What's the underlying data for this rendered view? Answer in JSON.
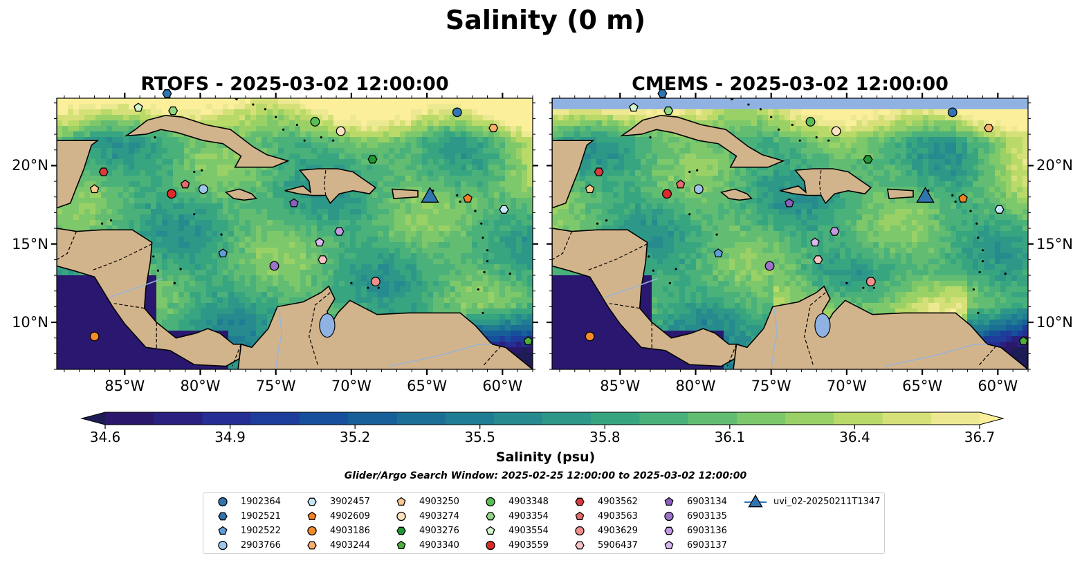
{
  "title": "Salinity (0 m)",
  "panels": [
    {
      "title": "RTOFS - 2025-03-02 12:00:00"
    },
    {
      "title": "CMEMS - 2025-03-02 12:00:00"
    }
  ],
  "map": {
    "lon_range": [
      -89.5,
      -58.0
    ],
    "lat_range": [
      7.0,
      24.3
    ],
    "lon_ticks": [
      {
        "value": -85,
        "label": "85°W"
      },
      {
        "value": -80,
        "label": "80°W"
      },
      {
        "value": -75,
        "label": "75°W"
      },
      {
        "value": -70,
        "label": "70°W"
      },
      {
        "value": -65,
        "label": "65°W"
      },
      {
        "value": -60,
        "label": "60°W"
      }
    ],
    "lat_ticks": [
      {
        "value": 20,
        "label": "20°N"
      },
      {
        "value": 15,
        "label": "15°N"
      },
      {
        "value": 10,
        "label": "10°N"
      }
    ],
    "colors": {
      "land": "#d2b48c",
      "lake": "#8fb2e3",
      "river": "#9ab4d4",
      "coast": "#000000",
      "pacific": "#2a1870"
    }
  },
  "colorbar": {
    "label": "Salinity (psu)",
    "min": 34.6,
    "max": 36.7,
    "ticks": [
      "34.6",
      "34.9",
      "35.2",
      "35.5",
      "35.8",
      "36.1",
      "36.4",
      "36.7"
    ],
    "colors": [
      "#2a186c",
      "#2a2080",
      "#252e93",
      "#1e3d9a",
      "#16509a",
      "#175f98",
      "#1b6e94",
      "#207c92",
      "#268a8e",
      "#2d9788",
      "#38a581",
      "#4ab17a",
      "#62bd72",
      "#7dc86b",
      "#9ad166",
      "#b9da68",
      "#d5e178",
      "#ede992"
    ],
    "over_color": "#fbef9b",
    "under_color": "#1e1c55"
  },
  "search_window": "Glider/Argo Search Window: 2025-02-25 12:00:00 to 2025-03-02 12:00:00",
  "platforms": [
    {
      "id": "1902364",
      "marker": "circle",
      "color": "#2f75b0",
      "lon": -63.0,
      "lat": 23.4
    },
    {
      "id": "1902521",
      "marker": "hexagon",
      "color": "#2f75b0",
      "lon": -82.2,
      "lat": 24.6
    },
    {
      "id": "1902522",
      "marker": "pentagon",
      "color": "#5f9fd9",
      "lon": -78.5,
      "lat": 14.4
    },
    {
      "id": "2903766",
      "marker": "circle",
      "color": "#9cc6ea",
      "lon": -79.8,
      "lat": 18.5
    },
    {
      "id": "3902457",
      "marker": "hexagon",
      "color": "#c5e6fa",
      "lon": -59.9,
      "lat": 17.2
    },
    {
      "id": "4902609",
      "marker": "pentagon",
      "color": "#f28121",
      "lon": -62.3,
      "lat": 17.9
    },
    {
      "id": "4903186",
      "marker": "circle",
      "color": "#f58c2b",
      "lon": -87.0,
      "lat": 9.1
    },
    {
      "id": "4903244",
      "marker": "hexagon",
      "color": "#f8b06c",
      "lon": -60.6,
      "lat": 22.4
    },
    {
      "id": "4903250",
      "marker": "pentagon",
      "color": "#f9c98e",
      "lon": -87.0,
      "lat": 18.5
    },
    {
      "id": "4903274",
      "marker": "circle",
      "color": "#fde2c0",
      "lon": -70.7,
      "lat": 22.2
    },
    {
      "id": "4903276",
      "marker": "hexagon",
      "color": "#1f9933",
      "lon": -68.6,
      "lat": 20.4
    },
    {
      "id": "4903340",
      "marker": "pentagon",
      "color": "#4daf3c",
      "lon": -58.3,
      "lat": 8.8
    },
    {
      "id": "4903348",
      "marker": "circle",
      "color": "#59bf52",
      "lon": -72.4,
      "lat": 22.8
    },
    {
      "id": "4903354",
      "marker": "hexagon",
      "color": "#8ed883",
      "lon": -81.8,
      "lat": 23.5
    },
    {
      "id": "4903554",
      "marker": "pentagon",
      "color": "#d4f5cc",
      "lon": -84.1,
      "lat": 23.7
    },
    {
      "id": "4903559",
      "marker": "circle",
      "color": "#dc2a28",
      "lon": -81.9,
      "lat": 18.2
    },
    {
      "id": "4903562",
      "marker": "hexagon",
      "color": "#d83a3d",
      "lon": -86.4,
      "lat": 19.6
    },
    {
      "id": "4903563",
      "marker": "pentagon",
      "color": "#e66b6a",
      "lon": -81.0,
      "lat": 18.8
    },
    {
      "id": "4903629",
      "marker": "circle",
      "color": "#f18f8c",
      "lon": -68.4,
      "lat": 12.6
    },
    {
      "id": "5906437",
      "marker": "hexagon",
      "color": "#fbc4c4",
      "lon": -71.9,
      "lat": 14.0
    },
    {
      "id": "6903134",
      "marker": "pentagon",
      "color": "#8d5fc1",
      "lon": -73.8,
      "lat": 17.6
    },
    {
      "id": "6903135",
      "marker": "circle",
      "color": "#9d73c9",
      "lon": -75.1,
      "lat": 13.6
    },
    {
      "id": "6903136",
      "marker": "hexagon",
      "color": "#c39ae0",
      "lon": -70.8,
      "lat": 15.8
    },
    {
      "id": "6903137",
      "marker": "pentagon",
      "color": "#d7b8f0",
      "lon": -72.1,
      "lat": 15.1
    },
    {
      "id": "uvi_02-20250211T1347",
      "marker": "triangle",
      "color": "#2f75b0",
      "lon": -64.8,
      "lat": 18.1
    }
  ]
}
